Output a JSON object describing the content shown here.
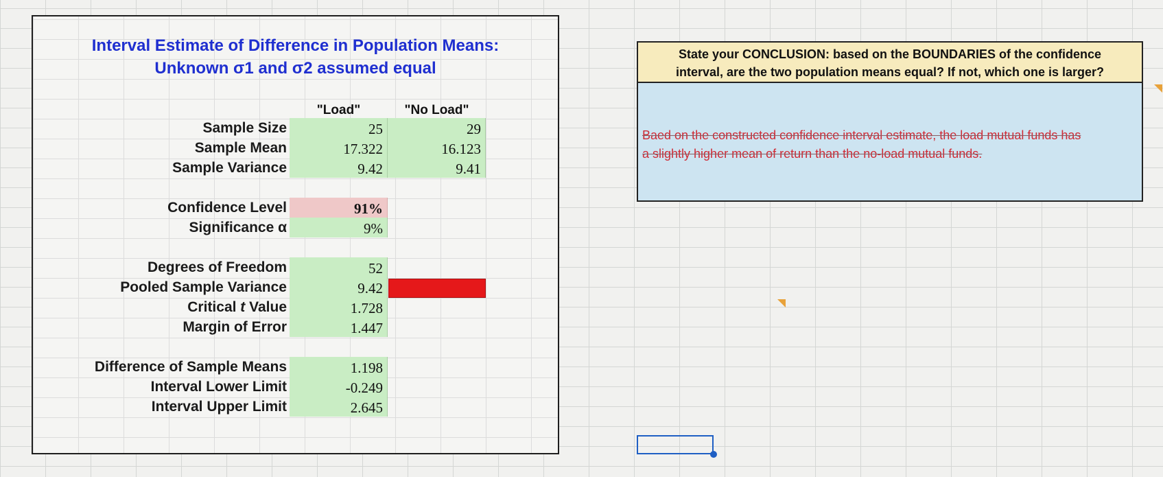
{
  "title": {
    "line1": "Interval Estimate of Difference in Population Means:",
    "line2": "Unknown σ1 and σ2 assumed equal"
  },
  "columns": {
    "col1": "\"Load\"",
    "col2": "\"No Load\""
  },
  "sample": {
    "size_label": "Sample Size",
    "mean_label": "Sample Mean",
    "variance_label": "Sample Variance",
    "size": [
      "25",
      "29"
    ],
    "mean": [
      "17.322",
      "16.123"
    ],
    "variance": [
      "9.42",
      "9.41"
    ]
  },
  "confidence": {
    "level_label": "Confidence Level",
    "level": "91%",
    "sig_label": "Significance α",
    "sig": "9%"
  },
  "stats": {
    "df_label": "Degrees of Freedom",
    "df": "52",
    "pooled_label": "Pooled Sample Variance",
    "pooled": "9.42",
    "tcrit_label_pre": "Critical ",
    "tcrit_label_t": "t",
    "tcrit_label_post": " Value",
    "tcrit": "1.728",
    "moe_label": "Margin of Error",
    "moe": "1.447"
  },
  "interval": {
    "diff_label": "Difference of Sample Means",
    "diff": "1.198",
    "lower_label": "Interval Lower Limit",
    "lower": "-0.249",
    "upper_label": "Interval Upper Limit",
    "upper": "2.645"
  },
  "question": {
    "line1": "State your CONCLUSION: based on the BOUNDARIES of the confidence",
    "line2": "interval, are the two population means equal? If not, which one is larger?"
  },
  "answer": {
    "line1": "Baed on the constructed confidence interval estimate, the load mutual funds has",
    "line2": "a slightly higher mean of return than the no-load mutual funds."
  },
  "colors": {
    "title_blue": "#1f2fd0",
    "cell_green": "#c9edc4",
    "cell_pink": "#efc8c8",
    "error_red": "#e5181a",
    "question_bg": "#f7ebbd",
    "answer_bg": "#cde4f1",
    "answer_text": "#cf2a35"
  }
}
